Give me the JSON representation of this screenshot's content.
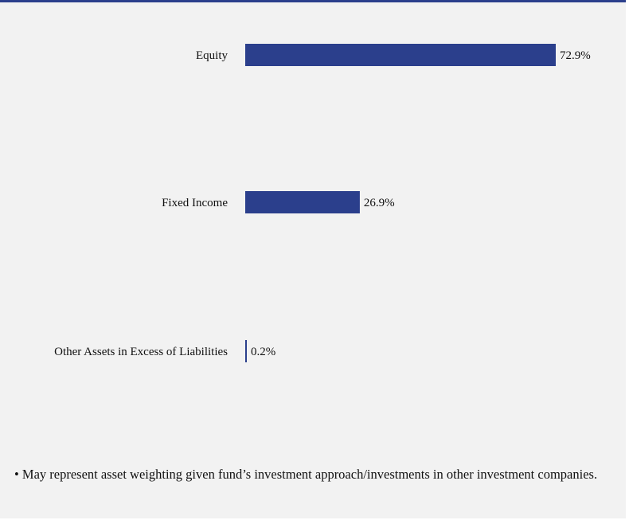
{
  "chart_data": {
    "type": "bar",
    "orientation": "horizontal",
    "categories": [
      "Equity",
      "Fixed Income",
      "Other Assets in Excess of Liabilities"
    ],
    "values": [
      72.9,
      26.9,
      0.2
    ],
    "value_labels": [
      "72.9%",
      "26.9%",
      "0.2%"
    ],
    "unit": "%",
    "xlim": [
      0,
      72.9
    ],
    "grid": false,
    "legend": "none",
    "bar_color": "#2b3f8c"
  },
  "footnote": "• May represent asset weighting given fund’s investment approach/investments in other investment companies.",
  "colors": {
    "accent": "#2b3f8c",
    "background": "#f2f2f2"
  }
}
